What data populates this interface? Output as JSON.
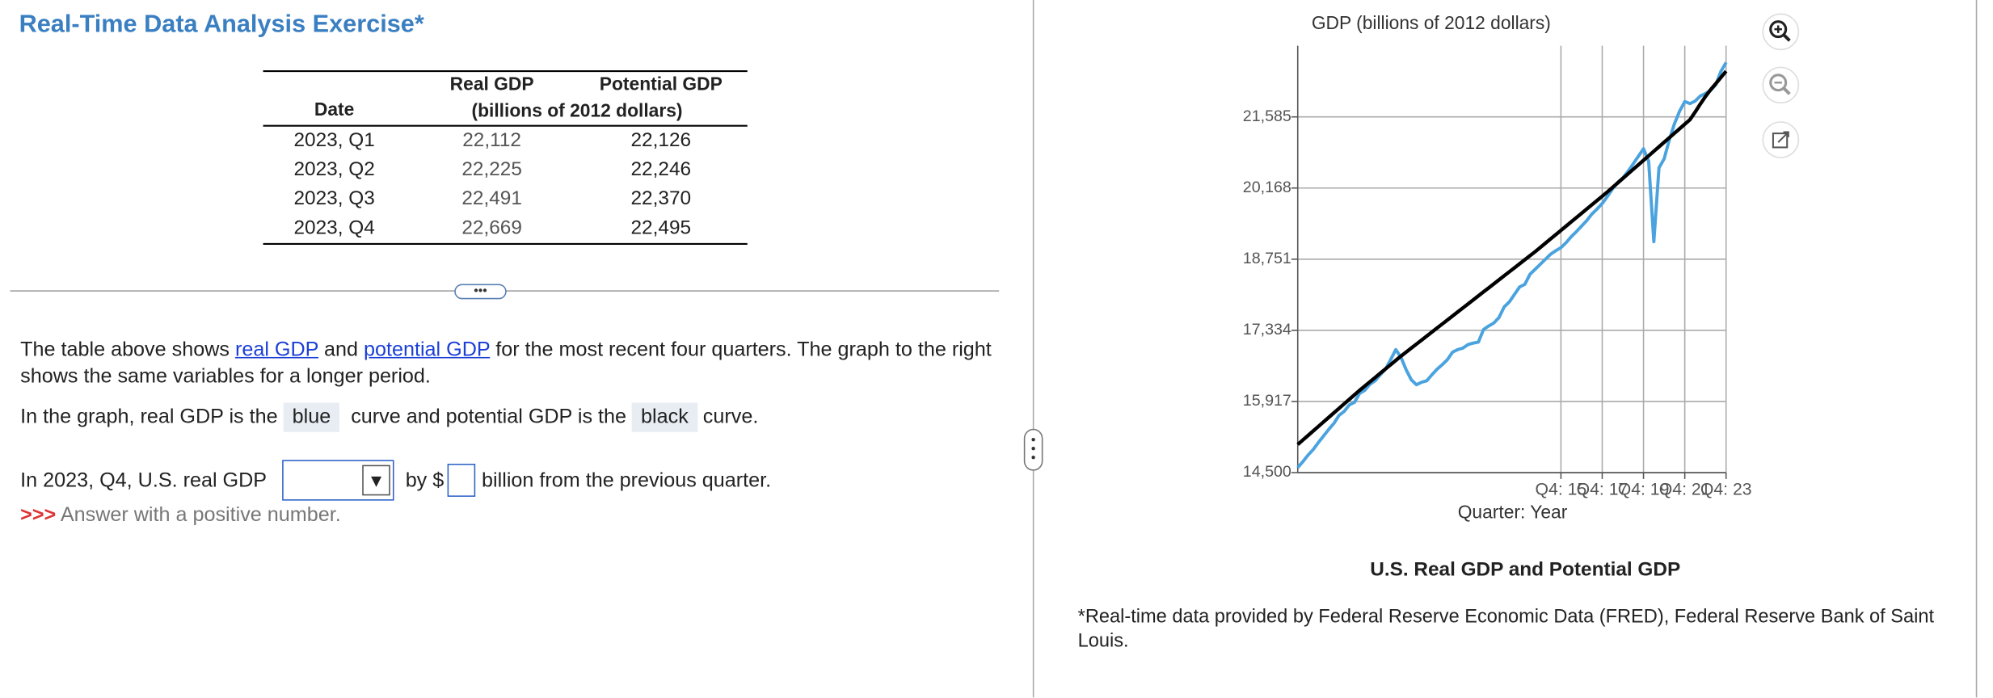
{
  "header": {
    "title": "Real-Time Data Analysis Exercise*"
  },
  "table": {
    "columns": [
      "Date",
      "Real GDP",
      "Potential GDP"
    ],
    "unit_note": "(billions of 2012 dollars)",
    "rows": [
      [
        "2023, Q1",
        "22,112",
        "22,126"
      ],
      [
        "2023, Q2",
        "22,225",
        "22,246"
      ],
      [
        "2023, Q3",
        "22,491",
        "22,370"
      ],
      [
        "2023, Q4",
        "22,669",
        "22,495"
      ]
    ]
  },
  "intro": {
    "text_1": "The table above shows",
    "link_1": "real GDP",
    "text_2": "and",
    "link_2": "potential GDP",
    "text_3": "for the most recent four quarters. The graph to the right shows the same variables for a longer period."
  },
  "legend_text": {
    "text_1": "In the graph, real GDP is the",
    "blue": "blue",
    "text_2": "curve and potential GDP is the",
    "black": "black",
    "text_3": "curve."
  },
  "question": {
    "text_1": "In 2023, Q4, U.S. real GDP",
    "text_2": "by $",
    "text_3": "billion from the previous quarter.",
    "hint_marker": ">>>",
    "hint": "Answer with a positive number."
  },
  "footnote": "*Real-time data provided by Federal Reserve Economic Data (FRED), Federal Reserve Bank of Saint Louis.",
  "chart_data": {
    "type": "line",
    "title": "GDP (billions of 2012 dollars)",
    "x_label": "Quarter: Year",
    "caption": "U.S. Real GDP and Potential GDP",
    "x": [
      2003,
      2003.25,
      2003.5,
      2003.75,
      2004,
      2004.25,
      2004.5,
      2004.75,
      2005,
      2005.25,
      2005.5,
      2005.75,
      2006,
      2006.25,
      2006.5,
      2006.75,
      2007,
      2007.25,
      2007.5,
      2007.75,
      2008,
      2008.25,
      2008.5,
      2008.75,
      2009,
      2009.25,
      2009.5,
      2009.75,
      2010,
      2010.25,
      2010.5,
      2010.75,
      2011,
      2011.25,
      2011.5,
      2011.75,
      2012,
      2012.25,
      2012.5,
      2012.75,
      2013,
      2013.25,
      2013.5,
      2013.75,
      2014,
      2014.25,
      2014.5,
      2014.75,
      2015,
      2015.25,
      2015.5,
      2015.75,
      2016,
      2016.25,
      2016.5,
      2016.75,
      2017,
      2017.25,
      2017.5,
      2017.75,
      2018,
      2018.25,
      2018.5,
      2018.75,
      2019,
      2019.25,
      2019.5,
      2019.75,
      2020,
      2020.25,
      2020.5,
      2020.75,
      2021,
      2021.25,
      2021.5,
      2021.75,
      2022,
      2022.25,
      2022.5,
      2022.75,
      2023,
      2023.25,
      2023.5,
      2023.75
    ],
    "series": [
      {
        "color": "#4aa3df",
        "values": [
          14600,
          14720,
          14850,
          14960,
          15100,
          15230,
          15360,
          15480,
          15640,
          15720,
          15850,
          15900,
          16080,
          16140,
          16260,
          16330,
          16450,
          16560,
          16750,
          16950,
          16800,
          16550,
          16350,
          16250,
          16300,
          16330,
          16450,
          16560,
          16650,
          16750,
          16900,
          16950,
          16980,
          17050,
          17080,
          17100,
          17350,
          17420,
          17480,
          17590,
          17800,
          17900,
          18050,
          18200,
          18250,
          18450,
          18550,
          18650,
          18750,
          18850,
          18920,
          18980,
          19080,
          19200,
          19300,
          19410,
          19520,
          19650,
          19750,
          19860,
          20000,
          20150,
          20280,
          20370,
          20500,
          20650,
          20800,
          20950,
          20700,
          19100,
          20570,
          20750,
          21130,
          21450,
          21700,
          21890,
          21850,
          21900,
          22000,
          22050,
          22112,
          22225,
          22491,
          22669
        ]
      },
      {
        "color": "#000000",
        "values": [
          15060,
          15150,
          15240,
          15330,
          15420,
          15510,
          15600,
          15690,
          15780,
          15870,
          15960,
          16050,
          16140,
          16225,
          16310,
          16395,
          16480,
          16565,
          16650,
          16735,
          16820,
          16900,
          16980,
          17060,
          17140,
          17220,
          17300,
          17380,
          17460,
          17540,
          17620,
          17700,
          17780,
          17860,
          17940,
          18020,
          18100,
          18180,
          18260,
          18340,
          18420,
          18500,
          18580,
          18660,
          18740,
          18820,
          18900,
          18985,
          19070,
          19155,
          19240,
          19325,
          19410,
          19495,
          19580,
          19665,
          19750,
          19835,
          19920,
          20005,
          20090,
          20180,
          20270,
          20360,
          20450,
          20540,
          20630,
          20720,
          20810,
          20900,
          20990,
          21080,
          21170,
          21260,
          21350,
          21440,
          21530,
          21680,
          21840,
          21990,
          22126,
          22246,
          22370,
          22495
        ]
      }
    ],
    "xlim": [
      2003,
      2023.75
    ],
    "ylim": [
      14500,
      23002
    ],
    "xticks": [
      {
        "value": 2015.75,
        "label": "Q4: 15"
      },
      {
        "value": 2017.75,
        "label": "Q4: 17"
      },
      {
        "value": 2019.75,
        "label": "Q4: 19"
      },
      {
        "value": 2021.75,
        "label": "Q4: 21"
      },
      {
        "value": 2023.75,
        "label": "Q4: 23"
      }
    ],
    "yticks": [
      {
        "value": 14500,
        "label": "14,500"
      },
      {
        "value": 15917,
        "label": "15,917"
      },
      {
        "value": 17334,
        "label": "17,334"
      },
      {
        "value": 18751,
        "label": "18,751"
      },
      {
        "value": 20168,
        "label": "20,168"
      },
      {
        "value": 21585,
        "label": "21,585"
      }
    ],
    "grid": true
  }
}
